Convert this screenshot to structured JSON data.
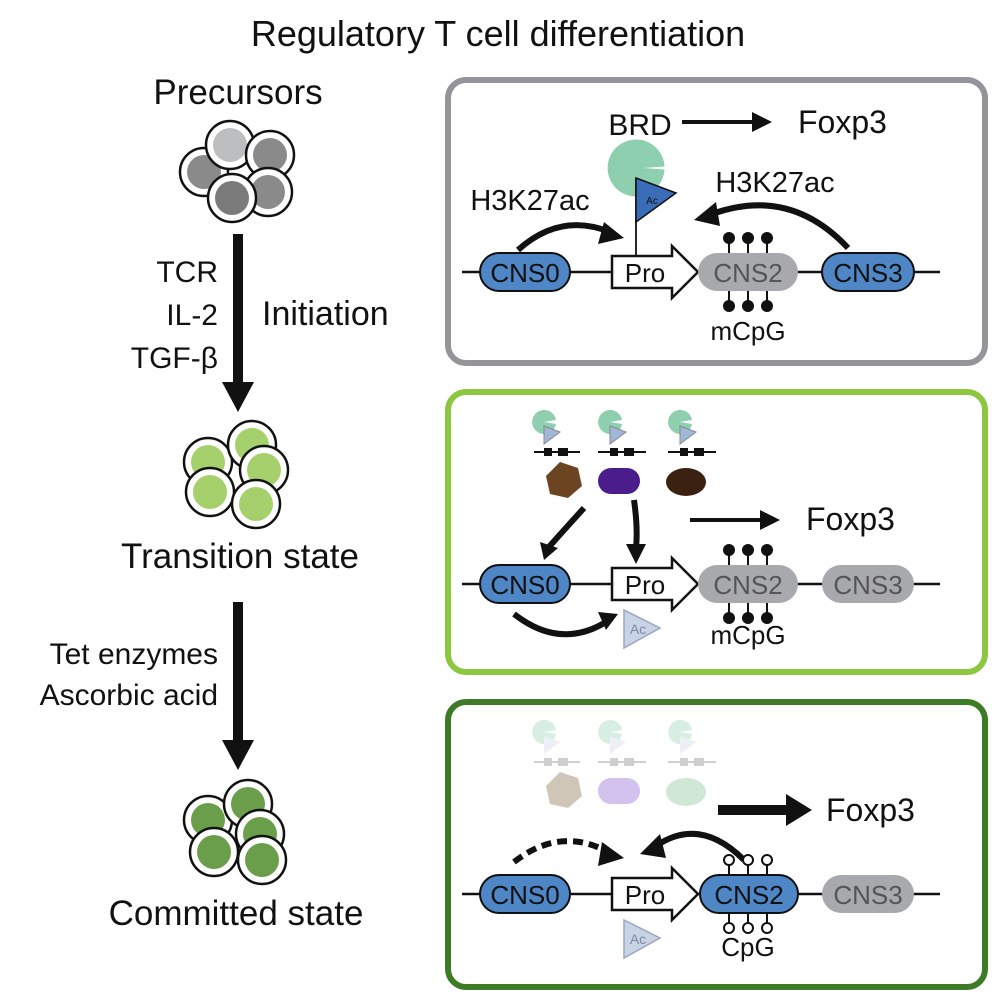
{
  "title": "Regulatory T cell differentiation",
  "stages": {
    "precursors": "Precursors",
    "transition": "Transition state",
    "committed": "Committed state"
  },
  "step1": {
    "signals": [
      "TCR",
      "IL-2",
      "TGF-β"
    ],
    "process": "Initiation"
  },
  "step2": {
    "signals": [
      "Tet enzymes",
      "Ascorbic acid"
    ]
  },
  "panel1": {
    "brd": "BRD",
    "foxp3": "Foxp3",
    "h3k_left": "H3K27ac",
    "h3k_right": "H3K27ac",
    "ac": "Ac",
    "cns0": "CNS0",
    "pro": "Pro",
    "cns2": "CNS2",
    "cns3": "CNS3",
    "methyl": "mCpG"
  },
  "panel2": {
    "foxp3": "Foxp3",
    "cns0": "CNS0",
    "pro": "Pro",
    "cns2": "CNS2",
    "cns3": "CNS3",
    "ac": "Ac",
    "methyl": "mCpG"
  },
  "panel3": {
    "foxp3": "Foxp3",
    "cns0": "CNS0",
    "pro": "Pro",
    "cns2": "CNS2",
    "cns3": "CNS3",
    "ac": "Ac",
    "methyl": "CpG"
  },
  "colors": {
    "panel1_border": "#939598",
    "panel2_border": "#8dc63f",
    "panel3_border": "#3e7b27",
    "cns_active": "#4f86c6",
    "cns_inactive": "#a7a9ac",
    "brd": "#8ecfb0",
    "ac_flag": "#3b6cb7",
    "cell_gray": "#9a9a9a",
    "cell_light_green": "#a5d06b",
    "cell_dark_green": "#6a9e4b"
  }
}
